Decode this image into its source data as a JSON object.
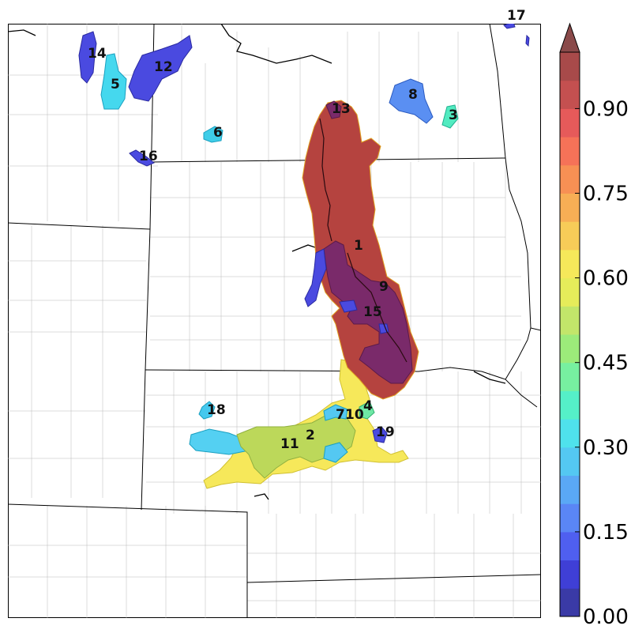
{
  "map": {
    "colorbar": {
      "min": 0.0,
      "max": 1.0,
      "tick_labels": [
        "0.00",
        "0.15",
        "0.30",
        "0.45",
        "0.60",
        "0.75",
        "0.90"
      ],
      "tick_values": [
        0.0,
        0.15,
        0.3,
        0.45,
        0.6,
        0.75,
        0.9
      ],
      "extend": "max",
      "levels": 20,
      "colors": [
        "#3a3aa6",
        "#3f3fd6",
        "#4f5ff0",
        "#5a86f5",
        "#5aa8f5",
        "#54c8f2",
        "#4fe2ec",
        "#55f0c8",
        "#77f0a0",
        "#9ceb7a",
        "#c2e66a",
        "#e6ec5a",
        "#f6e85a",
        "#f7cc58",
        "#f7ae55",
        "#f79054",
        "#f57258",
        "#e65a5a",
        "#c45050",
        "#a84a4a"
      ],
      "extend_color": "#8a4a4a"
    },
    "regions": [
      {
        "id": "1",
        "value": 0.99,
        "color": "#b5433f"
      },
      {
        "id": "2",
        "value": 0.62,
        "color": "#b9d24a"
      },
      {
        "id": "3",
        "value": 0.42,
        "color": "#52ebc0"
      },
      {
        "id": "4",
        "value": 0.46,
        "color": "#6ee8a5"
      },
      {
        "id": "5",
        "value": 0.33,
        "color": "#45d8ee"
      },
      {
        "id": "6",
        "value": 0.32,
        "color": "#3fcde8"
      },
      {
        "id": "7",
        "value": 0.63,
        "color": "#b8d74f"
      },
      {
        "id": "8",
        "value": 0.24,
        "color": "#5a8ff2"
      },
      {
        "id": "9",
        "value": 0.03,
        "color": "#6b2a6e"
      },
      {
        "id": "10",
        "value": 0.63,
        "color": "#b8d74f"
      },
      {
        "id": "11",
        "value": 0.61,
        "color": "#bcd85a"
      },
      {
        "id": "12",
        "value": 0.12,
        "color": "#4a4ae0"
      },
      {
        "id": "13",
        "value": 0.03,
        "color": "#6b2a6e"
      },
      {
        "id": "14",
        "value": 0.12,
        "color": "#4a4ae0"
      },
      {
        "id": "15",
        "value": 0.03,
        "color": "#6b2a6e"
      },
      {
        "id": "16",
        "value": 0.12,
        "color": "#4a4ae0"
      },
      {
        "id": "17",
        "value": 0.12,
        "color": "#4a4ae0"
      },
      {
        "id": "18",
        "value": 0.32,
        "color": "#45c8ee"
      },
      {
        "id": "19",
        "value": 0.12,
        "color": "#4a4ae0"
      }
    ]
  }
}
